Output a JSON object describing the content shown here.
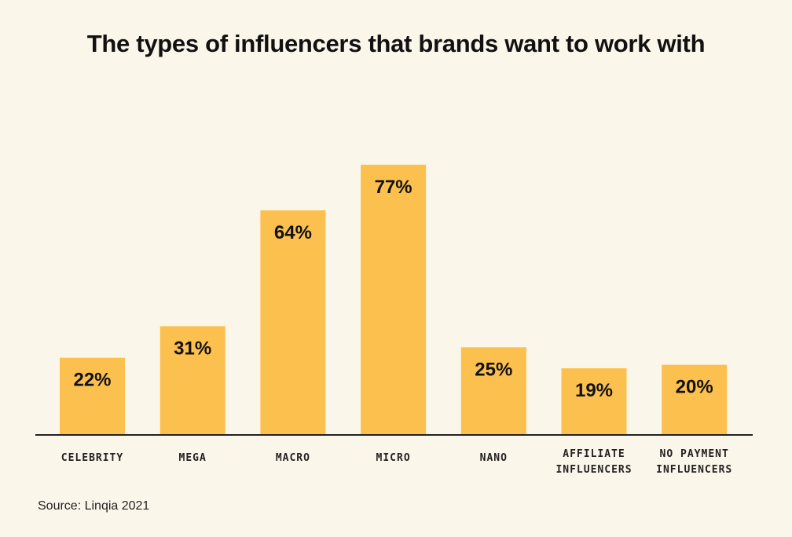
{
  "chart_data": {
    "type": "bar",
    "title": "The types of influencers that brands want to work with",
    "categories": [
      [
        "CELEBRITY"
      ],
      [
        "MEGA"
      ],
      [
        "MACRO"
      ],
      [
        "MICRO"
      ],
      [
        "NANO"
      ],
      [
        "AFFILIATE",
        "INFLUENCERS"
      ],
      [
        "NO PAYMENT",
        "INFLUENCERS"
      ]
    ],
    "values": [
      22,
      31,
      64,
      77,
      25,
      19,
      20
    ],
    "value_labels": [
      "22%",
      "31%",
      "64%",
      "77%",
      "25%",
      "19%",
      "20%"
    ],
    "unit": "%",
    "ylim": [
      0,
      100
    ],
    "xlabel": "",
    "ylabel": "",
    "bar_color": "#fcc04f",
    "axis_color": "#222222"
  },
  "source": "Source: Linqia 2021"
}
